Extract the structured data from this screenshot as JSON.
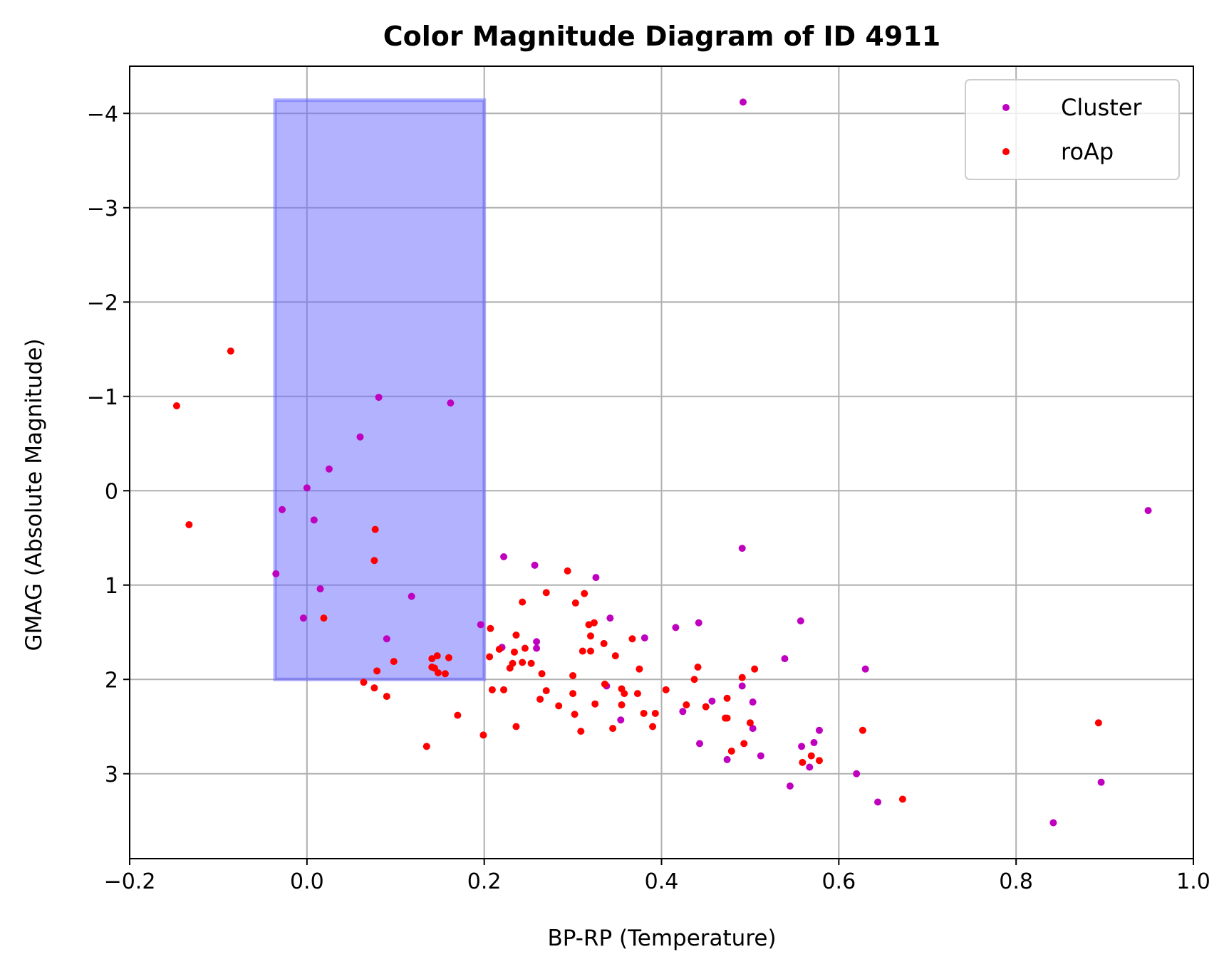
{
  "chart_data": {
    "type": "scatter",
    "title": "Color Magnitude Diagram of ID 4911",
    "xlabel": "BP-RP (Temperature)",
    "ylabel": "GMAG (Absolute Magnitude)",
    "xlim": [
      -0.2,
      1.0
    ],
    "ylim": [
      3.9,
      -4.5
    ],
    "y_inverted": true,
    "grid": true,
    "legend_position": "upper-right",
    "x_ticks": [
      -0.2,
      0.0,
      0.2,
      0.4,
      0.6,
      0.8,
      1.0
    ],
    "x_tick_labels": [
      "−0.2",
      "0.0",
      "0.2",
      "0.4",
      "0.6",
      "0.8",
      "1.0"
    ],
    "y_ticks": [
      -4,
      -3,
      -2,
      -1,
      0,
      1,
      2,
      3
    ],
    "y_tick_labels": [
      "−4",
      "−3",
      "−2",
      "−1",
      "0",
      "1",
      "2",
      "3"
    ],
    "highlight_region": {
      "x": [
        -0.036,
        0.2
      ],
      "y": [
        -4.14,
        2.0
      ],
      "color": "#6666ff"
    },
    "series": [
      {
        "name": "Cluster",
        "color": "#bf00bf",
        "points": [
          [
            0.492,
            -4.12
          ],
          [
            0.949,
            0.21
          ],
          [
            0.081,
            -0.99
          ],
          [
            0.162,
            -0.93
          ],
          [
            0.06,
            -0.57
          ],
          [
            0.025,
            -0.23
          ],
          [
            0.0,
            -0.03
          ],
          [
            -0.028,
            0.2
          ],
          [
            0.008,
            0.31
          ],
          [
            -0.035,
            0.88
          ],
          [
            0.015,
            1.04
          ],
          [
            0.118,
            1.12
          ],
          [
            -0.004,
            1.35
          ],
          [
            0.09,
            1.57
          ],
          [
            0.196,
            1.42
          ],
          [
            0.222,
            0.7
          ],
          [
            0.257,
            0.79
          ],
          [
            0.326,
            0.92
          ],
          [
            0.491,
            0.61
          ],
          [
            0.22,
            1.66
          ],
          [
            0.259,
            1.6
          ],
          [
            0.259,
            1.67
          ],
          [
            0.342,
            1.35
          ],
          [
            0.381,
            1.56
          ],
          [
            0.416,
            1.45
          ],
          [
            0.442,
            1.4
          ],
          [
            0.557,
            1.38
          ],
          [
            0.539,
            1.78
          ],
          [
            0.63,
            1.89
          ],
          [
            0.491,
            2.07
          ],
          [
            0.338,
            2.07
          ],
          [
            0.354,
            2.43
          ],
          [
            0.424,
            2.34
          ],
          [
            0.457,
            2.23
          ],
          [
            0.503,
            2.24
          ],
          [
            0.503,
            2.52
          ],
          [
            0.443,
            2.68
          ],
          [
            0.474,
            2.85
          ],
          [
            0.512,
            2.81
          ],
          [
            0.558,
            2.71
          ],
          [
            0.572,
            2.67
          ],
          [
            0.567,
            2.93
          ],
          [
            0.578,
            2.54
          ],
          [
            0.545,
            3.13
          ],
          [
            0.62,
            3.0
          ],
          [
            0.644,
            3.3
          ],
          [
            0.842,
            3.52
          ],
          [
            0.896,
            3.09
          ]
        ]
      },
      {
        "name": "roAp",
        "color": "#ff0000",
        "points": [
          [
            -0.086,
            -1.48
          ],
          [
            -0.147,
            -0.9
          ],
          [
            -0.133,
            0.36
          ],
          [
            0.077,
            0.41
          ],
          [
            0.076,
            0.74
          ],
          [
            0.019,
            1.35
          ],
          [
            0.098,
            1.81
          ],
          [
            0.079,
            1.91
          ],
          [
            0.064,
            2.03
          ],
          [
            0.076,
            2.09
          ],
          [
            0.09,
            2.18
          ],
          [
            0.141,
            1.78
          ],
          [
            0.147,
            1.75
          ],
          [
            0.16,
            1.77
          ],
          [
            0.141,
            1.87
          ],
          [
            0.144,
            1.88
          ],
          [
            0.148,
            1.93
          ],
          [
            0.156,
            1.94
          ],
          [
            0.17,
            2.38
          ],
          [
            0.135,
            2.71
          ],
          [
            0.199,
            2.59
          ],
          [
            0.207,
            1.46
          ],
          [
            0.206,
            1.76
          ],
          [
            0.209,
            2.11
          ],
          [
            0.222,
            2.11
          ],
          [
            0.217,
            1.68
          ],
          [
            0.236,
            1.53
          ],
          [
            0.234,
            1.71
          ],
          [
            0.232,
            1.83
          ],
          [
            0.229,
            1.88
          ],
          [
            0.243,
            1.82
          ],
          [
            0.246,
            1.67
          ],
          [
            0.253,
            1.83
          ],
          [
            0.243,
            1.18
          ],
          [
            0.27,
            1.08
          ],
          [
            0.265,
            1.94
          ],
          [
            0.27,
            2.12
          ],
          [
            0.263,
            2.21
          ],
          [
            0.284,
            2.28
          ],
          [
            0.236,
            2.5
          ],
          [
            0.294,
            0.85
          ],
          [
            0.303,
            1.19
          ],
          [
            0.313,
            1.09
          ],
          [
            0.318,
            1.42
          ],
          [
            0.324,
            1.4
          ],
          [
            0.32,
            1.54
          ],
          [
            0.311,
            1.7
          ],
          [
            0.32,
            1.7
          ],
          [
            0.335,
            1.62
          ],
          [
            0.348,
            1.75
          ],
          [
            0.3,
            1.96
          ],
          [
            0.3,
            2.15
          ],
          [
            0.302,
            2.37
          ],
          [
            0.309,
            2.55
          ],
          [
            0.325,
            2.26
          ],
          [
            0.336,
            2.05
          ],
          [
            0.345,
            2.52
          ],
          [
            0.355,
            2.1
          ],
          [
            0.358,
            2.15
          ],
          [
            0.355,
            2.27
          ],
          [
            0.367,
            1.57
          ],
          [
            0.375,
            1.89
          ],
          [
            0.373,
            2.15
          ],
          [
            0.38,
            2.36
          ],
          [
            0.39,
            2.5
          ],
          [
            0.393,
            2.36
          ],
          [
            0.405,
            2.11
          ],
          [
            0.428,
            2.27
          ],
          [
            0.437,
            2.0
          ],
          [
            0.441,
            1.87
          ],
          [
            0.45,
            2.29
          ],
          [
            0.472,
            2.41
          ],
          [
            0.474,
            2.2
          ],
          [
            0.474,
            2.41
          ],
          [
            0.479,
            2.76
          ],
          [
            0.491,
            1.98
          ],
          [
            0.493,
            2.68
          ],
          [
            0.5,
            2.46
          ],
          [
            0.505,
            1.89
          ],
          [
            0.559,
            2.88
          ],
          [
            0.569,
            2.81
          ],
          [
            0.578,
            2.86
          ],
          [
            0.627,
            2.54
          ],
          [
            0.672,
            3.27
          ],
          [
            0.893,
            2.46
          ]
        ]
      }
    ]
  }
}
